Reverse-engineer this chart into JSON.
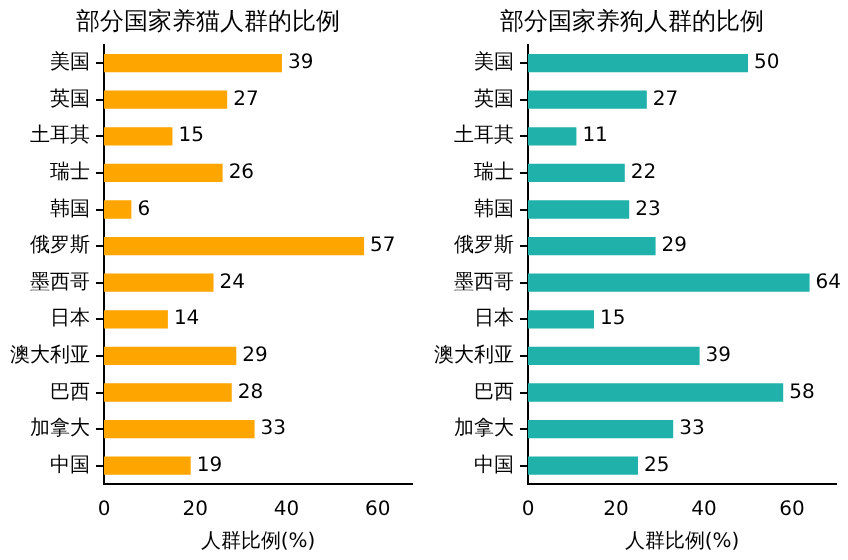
{
  "chart_data": [
    {
      "type": "bar",
      "orientation": "horizontal",
      "title": "部分国家养猫人群的比例",
      "xlabel": "人群比例(%)",
      "categories": [
        "美国",
        "英国",
        "土耳其",
        "瑞士",
        "韩国",
        "俄罗斯",
        "墨西哥",
        "日本",
        "澳大利亚",
        "巴西",
        "加拿大",
        "中国"
      ],
      "values": [
        39,
        27,
        15,
        26,
        6,
        57,
        24,
        14,
        29,
        28,
        33,
        19
      ],
      "color": "#ffa500",
      "xlim": [
        0,
        67.5
      ],
      "xticks": [
        0,
        20,
        40,
        60
      ],
      "data_labels": true,
      "grid": false,
      "legend": false
    },
    {
      "type": "bar",
      "orientation": "horizontal",
      "title": "部分国家养狗人群的比例",
      "xlabel": "人群比例(%)",
      "categories": [
        "美国",
        "英国",
        "土耳其",
        "瑞士",
        "韩国",
        "俄罗斯",
        "墨西哥",
        "日本",
        "澳大利亚",
        "巴西",
        "加拿大",
        "中国"
      ],
      "values": [
        50,
        27,
        11,
        22,
        23,
        29,
        64,
        15,
        39,
        58,
        33,
        25
      ],
      "color": "#20b2aa",
      "xlim": [
        0,
        70
      ],
      "xticks": [
        0,
        20,
        40,
        60
      ],
      "data_labels": true,
      "grid": false,
      "legend": false
    }
  ]
}
